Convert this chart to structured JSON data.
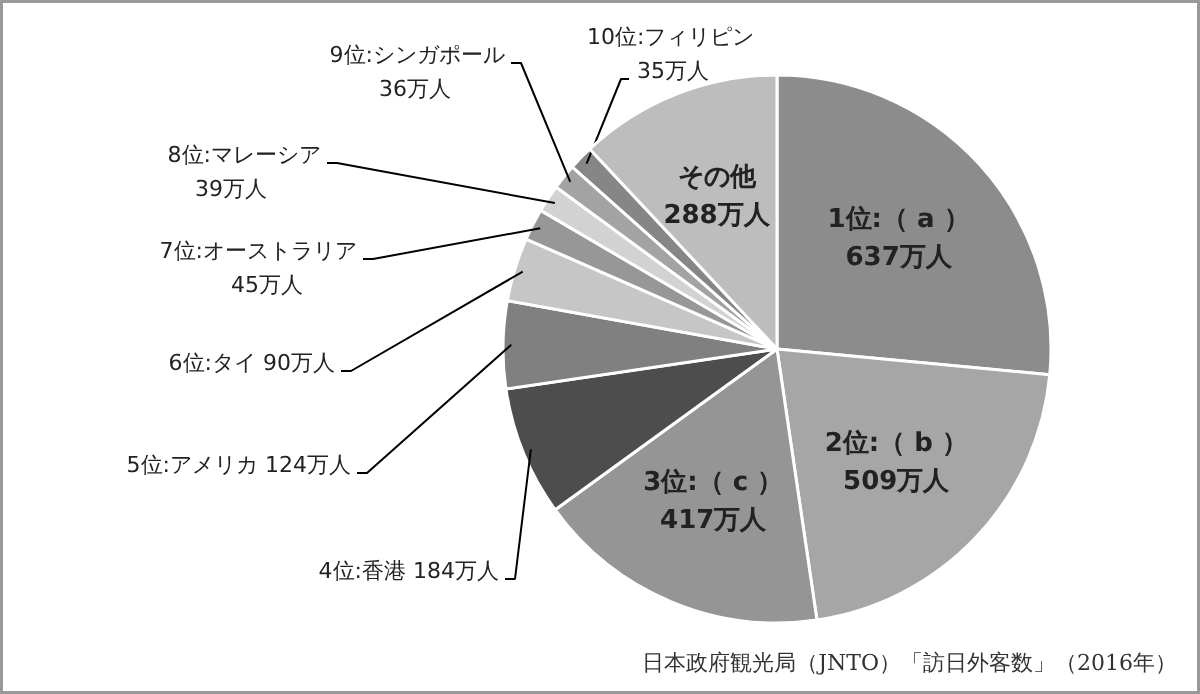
{
  "chart_data": {
    "type": "pie",
    "categories": [
      "1位:（ a ）",
      "2位:（ b ）",
      "3位:（ c ）",
      "4位:香港",
      "5位:アメリカ",
      "6位:タイ",
      "7位:オーストラリア",
      "8位:マレーシア",
      "9位:シンガポール",
      "10位:フィリピン",
      "その他"
    ],
    "values": [
      637,
      509,
      417,
      184,
      124,
      90,
      45,
      39,
      36,
      35,
      288
    ],
    "value_labels": [
      "637万人",
      "509万人",
      "417万人",
      "184万人",
      "124万人",
      "90万人",
      "45万人",
      "39万人",
      "36万人",
      "35万人",
      "288万人"
    ],
    "colors": [
      "#8c8c8c",
      "#a6a6a6",
      "#959595",
      "#4d4d4d",
      "#808080",
      "#c6c6c6",
      "#979797",
      "#d2d2d2",
      "#a3a3a3",
      "#868686",
      "#bdbdbd"
    ],
    "annotations": [
      "日本政府観光局（JNTO）「訪日外客数」（2016年）"
    ]
  }
}
